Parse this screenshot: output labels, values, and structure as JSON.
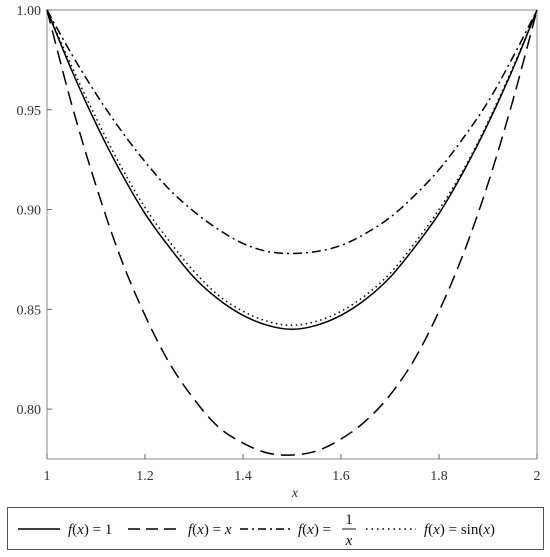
{
  "chart_data": {
    "type": "line",
    "title": "",
    "xlabel": "x",
    "ylabel": "",
    "xlim": [
      1,
      2
    ],
    "ylim": [
      0.775,
      1.0
    ],
    "x_ticks": [
      "1",
      "1.2",
      "1.4",
      "1.6",
      "1.8",
      "2"
    ],
    "y_ticks": [
      "0.80",
      "0.85",
      "0.90",
      "0.95",
      "1.00"
    ],
    "grid": false,
    "legend_position": "bottom",
    "series": [
      {
        "name": "f(x) = 1",
        "style": "solid",
        "x": [
          1.0,
          1.05,
          1.1,
          1.15,
          1.2,
          1.25,
          1.3,
          1.35,
          1.4,
          1.45,
          1.5,
          1.55,
          1.6,
          1.65,
          1.7,
          1.75,
          1.8,
          1.85,
          1.9,
          1.95,
          2.0
        ],
        "values": [
          1.0,
          0.97,
          0.943,
          0.919,
          0.898,
          0.881,
          0.866,
          0.855,
          0.847,
          0.842,
          0.84,
          0.842,
          0.847,
          0.855,
          0.866,
          0.881,
          0.898,
          0.919,
          0.943,
          0.97,
          1.0
        ]
      },
      {
        "name": "f(x) = x",
        "style": "dashed",
        "x": [
          1.0,
          1.05,
          1.1,
          1.15,
          1.2,
          1.25,
          1.3,
          1.35,
          1.4,
          1.45,
          1.5,
          1.55,
          1.6,
          1.65,
          1.7,
          1.75,
          1.8,
          1.85,
          1.9,
          1.95,
          2.0
        ],
        "values": [
          1.0,
          0.953,
          0.912,
          0.876,
          0.847,
          0.823,
          0.805,
          0.791,
          0.783,
          0.778,
          0.777,
          0.779,
          0.785,
          0.794,
          0.807,
          0.825,
          0.849,
          0.878,
          0.913,
          0.954,
          1.0
        ]
      },
      {
        "name": "f(x) = 1/x",
        "style": "dashdot",
        "x": [
          1.0,
          1.05,
          1.1,
          1.15,
          1.2,
          1.25,
          1.3,
          1.35,
          1.4,
          1.45,
          1.5,
          1.55,
          1.6,
          1.65,
          1.7,
          1.75,
          1.8,
          1.85,
          1.9,
          1.95,
          2.0
        ],
        "values": [
          1.0,
          0.978,
          0.958,
          0.94,
          0.924,
          0.91,
          0.899,
          0.89,
          0.883,
          0.879,
          0.878,
          0.879,
          0.882,
          0.888,
          0.896,
          0.907,
          0.92,
          0.936,
          0.954,
          0.976,
          1.0
        ]
      },
      {
        "name": "f(x) = sin(x)",
        "style": "dotted",
        "x": [
          1.0,
          1.05,
          1.1,
          1.15,
          1.2,
          1.25,
          1.3,
          1.35,
          1.4,
          1.45,
          1.5,
          1.55,
          1.6,
          1.65,
          1.7,
          1.75,
          1.8,
          1.85,
          1.9,
          1.95,
          2.0
        ],
        "values": [
          1.0,
          0.972,
          0.946,
          0.922,
          0.901,
          0.884,
          0.869,
          0.857,
          0.849,
          0.844,
          0.842,
          0.844,
          0.849,
          0.857,
          0.868,
          0.883,
          0.9,
          0.92,
          0.944,
          0.971,
          1.0
        ]
      }
    ]
  }
}
